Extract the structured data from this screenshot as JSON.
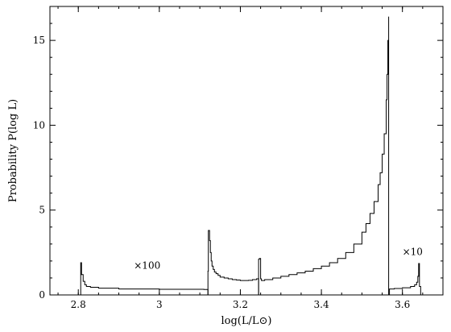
{
  "chart_data": {
    "type": "line",
    "title": "",
    "xlabel": "log(L/L⊙)",
    "ylabel": "Probability  P(log L)",
    "xlim": [
      2.73,
      3.7
    ],
    "ylim": [
      0,
      17.0
    ],
    "xticks": [
      2.8,
      3,
      3.2,
      3.4,
      3.6
    ],
    "xtick_labels": [
      "2.8",
      "3",
      "3.2",
      "3.4",
      "3.6"
    ],
    "yticks": [
      0,
      5,
      10,
      15
    ],
    "ytick_labels": [
      "0",
      "5",
      "10",
      "15"
    ],
    "grid": false,
    "annotations": [
      {
        "text": "×100",
        "x": 2.97,
        "y": 1.55
      },
      {
        "text": "×10",
        "x": 3.625,
        "y": 2.35
      }
    ],
    "series": [
      {
        "style": "step",
        "segments": [
          {
            "x": [
              2.806,
              2.808,
              2.812,
              2.816,
              2.82,
              2.83,
              2.85,
              2.9,
              3.0,
              3.11,
              3.12
            ],
            "y": [
              1.9,
              1.2,
              0.8,
              0.6,
              0.5,
              0.45,
              0.4,
              0.35,
              0.33,
              0.32,
              0.32
            ]
          },
          {
            "x": [
              3.12,
              3.121,
              3.124,
              3.126,
              3.128,
              3.13,
              3.133,
              3.136,
              3.14,
              3.145,
              3.15,
              3.16,
              3.17,
              3.18,
              3.19,
              3.2,
              3.21,
              3.22,
              3.23,
              3.24,
              3.245
            ],
            "y": [
              1.4,
              3.8,
              3.2,
              2.5,
              2.0,
              1.7,
              1.5,
              1.35,
              1.25,
              1.15,
              1.05,
              1.0,
              0.95,
              0.9,
              0.88,
              0.85,
              0.85,
              0.86,
              0.9,
              0.95,
              1.0
            ]
          },
          {
            "x": [
              3.245,
              3.247,
              3.25,
              3.252,
              3.26,
              3.28,
              3.3,
              3.32,
              3.34,
              3.36,
              3.38,
              3.4,
              3.42,
              3.44,
              3.46,
              3.48,
              3.5,
              3.51,
              3.52,
              3.53,
              3.54,
              3.545,
              3.55,
              3.555,
              3.56,
              3.562,
              3.564,
              3.566
            ],
            "y": [
              2.1,
              2.15,
              0.95,
              0.85,
              0.9,
              1.0,
              1.1,
              1.2,
              1.3,
              1.4,
              1.55,
              1.7,
              1.9,
              2.15,
              2.5,
              3.0,
              3.7,
              4.2,
              4.8,
              5.5,
              6.5,
              7.2,
              8.3,
              9.5,
              11.5,
              13.0,
              15.0,
              16.4
            ]
          },
          {
            "x": [
              3.568,
              3.58,
              3.6,
              3.62,
              3.63,
              3.635,
              3.638,
              3.64,
              3.642,
              3.645
            ],
            "y": [
              0.35,
              0.38,
              0.42,
              0.5,
              0.6,
              0.75,
              1.1,
              1.85,
              0.5,
              0.1
            ]
          }
        ]
      }
    ]
  }
}
